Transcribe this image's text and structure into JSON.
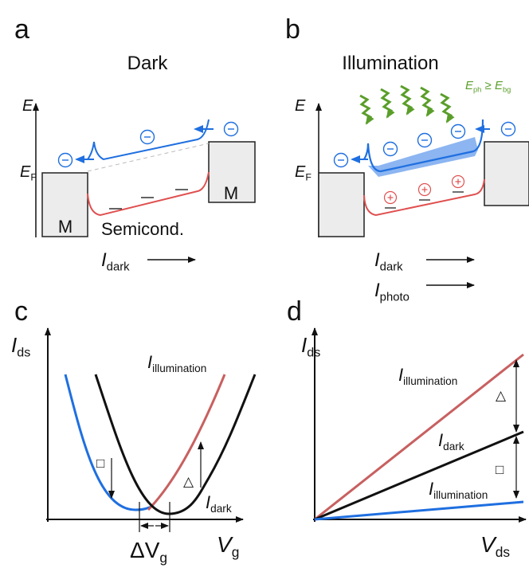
{
  "panels": [
    {
      "letter": "a",
      "title": "Dark",
      "energy_axis": "E",
      "fermi_level": {
        "main": "E",
        "sub": "F"
      },
      "metal_labels": [
        "M",
        "M"
      ],
      "semiconductor_label": "Semicond.",
      "currents": [
        {
          "main": "I",
          "sub": "dark"
        }
      ]
    },
    {
      "letter": "b",
      "title": "Illumination",
      "energy_axis": "E",
      "fermi_level": {
        "main": "E",
        "sub": "F"
      },
      "photon_condition": {
        "left": {
          "main": "E",
          "sub": "ph"
        },
        "relation": "≥",
        "right": {
          "main": "E",
          "sub": "bg"
        }
      },
      "currents": [
        {
          "main": "I",
          "sub": "dark"
        },
        {
          "main": "I",
          "sub": "photo"
        }
      ]
    },
    {
      "letter": "c",
      "y_axis": {
        "main": "I",
        "sub": "ds"
      },
      "x_axis": {
        "main": "V",
        "sub": "g"
      },
      "curve_labels": [
        {
          "main": "I",
          "sub": "illumination"
        },
        {
          "main": "I",
          "sub": "dark"
        }
      ],
      "shift_label": {
        "main": "ΔV",
        "sub": "g"
      },
      "symbols": [
        "□",
        "△"
      ]
    },
    {
      "letter": "d",
      "y_axis": {
        "main": "I",
        "sub": "ds"
      },
      "x_axis": {
        "main": "V",
        "sub": "ds"
      },
      "curve_labels": [
        {
          "main": "I",
          "sub": "illumination"
        },
        {
          "main": "I",
          "sub": "dark"
        },
        {
          "main": "I",
          "sub": "illumination"
        }
      ],
      "symbols": [
        "△",
        "□"
      ]
    }
  ]
}
